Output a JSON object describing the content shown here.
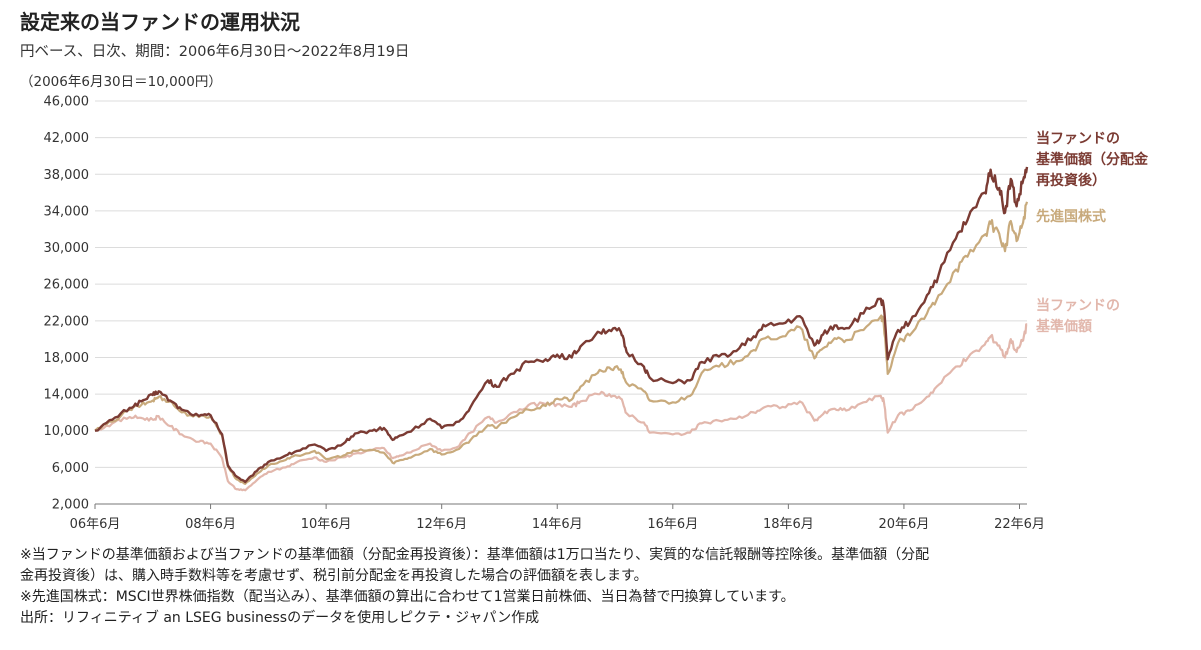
{
  "chart_data": {
    "type": "line",
    "title": "設定来の当ファンドの運用状況",
    "subtitle": "円ベース、日次、期間：2006年6月30日～2022年8月19日",
    "ylabel": "（2006年6月30日＝10,000円）",
    "xlabel": "",
    "ylim": [
      2000,
      46000
    ],
    "xlim": [
      2006.5,
      2022.63
    ],
    "yticks": [
      2000,
      6000,
      10000,
      14000,
      18000,
      22000,
      26000,
      30000,
      34000,
      38000,
      42000,
      46000
    ],
    "ytick_labels": [
      "2,000",
      "6,000",
      "10,000",
      "14,000",
      "18,000",
      "22,000",
      "26,000",
      "30,000",
      "34,000",
      "38,000",
      "42,000",
      "46,000"
    ],
    "xticks": [
      2006.5,
      2008.5,
      2010.5,
      2012.5,
      2014.5,
      2016.5,
      2018.5,
      2020.5,
      2022.5
    ],
    "xtick_labels": [
      "06年6月",
      "08年6月",
      "10年6月",
      "12年6月",
      "14年6月",
      "16年6月",
      "18年6月",
      "20年6月",
      "22年6月"
    ],
    "grid": true,
    "legend_position": "right",
    "series": [
      {
        "name": "当ファンドの基準価額（分配金再投資後）",
        "legend_lines": [
          "当ファンドの",
          "基準価額（分配金",
          "再投資後）"
        ],
        "color": "#7b3b33",
        "points": [
          [
            2006.5,
            10000
          ],
          [
            2006.8,
            11200
          ],
          [
            2007.1,
            12500
          ],
          [
            2007.3,
            13200
          ],
          [
            2007.5,
            13900
          ],
          [
            2007.6,
            14300
          ],
          [
            2007.8,
            13300
          ],
          [
            2008.0,
            12300
          ],
          [
            2008.3,
            11600
          ],
          [
            2008.5,
            11700
          ],
          [
            2008.7,
            9600
          ],
          [
            2008.8,
            6200
          ],
          [
            2008.95,
            5000
          ],
          [
            2009.1,
            4400
          ],
          [
            2009.3,
            5600
          ],
          [
            2009.5,
            6600
          ],
          [
            2009.8,
            7300
          ],
          [
            2010.0,
            7800
          ],
          [
            2010.3,
            8500
          ],
          [
            2010.5,
            7800
          ],
          [
            2010.8,
            8600
          ],
          [
            2011.0,
            9700
          ],
          [
            2011.3,
            10000
          ],
          [
            2011.5,
            10300
          ],
          [
            2011.65,
            9000
          ],
          [
            2011.8,
            9500
          ],
          [
            2012.0,
            10100
          ],
          [
            2012.3,
            11300
          ],
          [
            2012.5,
            10300
          ],
          [
            2012.8,
            11000
          ],
          [
            2013.0,
            12600
          ],
          [
            2013.3,
            15500
          ],
          [
            2013.45,
            14800
          ],
          [
            2013.7,
            16200
          ],
          [
            2014.0,
            17500
          ],
          [
            2014.3,
            17800
          ],
          [
            2014.5,
            18300
          ],
          [
            2014.75,
            18000
          ],
          [
            2014.9,
            19200
          ],
          [
            2015.2,
            20800
          ],
          [
            2015.4,
            21000
          ],
          [
            2015.6,
            20800
          ],
          [
            2015.7,
            18600
          ],
          [
            2016.0,
            17000
          ],
          [
            2016.1,
            15800
          ],
          [
            2016.5,
            15200
          ],
          [
            2016.8,
            15500
          ],
          [
            2017.0,
            17500
          ],
          [
            2017.3,
            18100
          ],
          [
            2017.6,
            18700
          ],
          [
            2017.9,
            20300
          ],
          [
            2018.1,
            21400
          ],
          [
            2018.4,
            21700
          ],
          [
            2018.7,
            22500
          ],
          [
            2018.95,
            19300
          ],
          [
            2019.1,
            20500
          ],
          [
            2019.3,
            21500
          ],
          [
            2019.5,
            21200
          ],
          [
            2019.8,
            22800
          ],
          [
            2020.1,
            24400
          ],
          [
            2020.15,
            23600
          ],
          [
            2020.22,
            17800
          ],
          [
            2020.4,
            21000
          ],
          [
            2020.6,
            21800
          ],
          [
            2020.9,
            24800
          ],
          [
            2021.1,
            27000
          ],
          [
            2021.4,
            31000
          ],
          [
            2021.6,
            33000
          ],
          [
            2021.9,
            36000
          ],
          [
            2022.0,
            38500
          ],
          [
            2022.15,
            36500
          ],
          [
            2022.25,
            33800
          ],
          [
            2022.35,
            37500
          ],
          [
            2022.45,
            34500
          ],
          [
            2022.55,
            37000
          ],
          [
            2022.63,
            38800
          ]
        ]
      },
      {
        "name": "先進国株式",
        "legend_lines": [
          "先進国株式"
        ],
        "color": "#c8aa7c",
        "points": [
          [
            2006.5,
            10000
          ],
          [
            2006.8,
            11000
          ],
          [
            2007.1,
            12300
          ],
          [
            2007.3,
            12800
          ],
          [
            2007.5,
            13300
          ],
          [
            2007.6,
            13700
          ],
          [
            2007.8,
            13200
          ],
          [
            2008.0,
            12000
          ],
          [
            2008.3,
            11500
          ],
          [
            2008.5,
            11600
          ],
          [
            2008.7,
            9500
          ],
          [
            2008.8,
            6100
          ],
          [
            2008.95,
            4700
          ],
          [
            2009.1,
            4200
          ],
          [
            2009.3,
            5300
          ],
          [
            2009.5,
            6200
          ],
          [
            2009.8,
            6800
          ],
          [
            2010.0,
            7300
          ],
          [
            2010.3,
            7800
          ],
          [
            2010.5,
            6900
          ],
          [
            2010.8,
            7300
          ],
          [
            2011.0,
            7800
          ],
          [
            2011.3,
            7900
          ],
          [
            2011.5,
            7600
          ],
          [
            2011.65,
            6500
          ],
          [
            2011.8,
            6800
          ],
          [
            2012.0,
            7200
          ],
          [
            2012.3,
            8000
          ],
          [
            2012.5,
            7400
          ],
          [
            2012.8,
            8000
          ],
          [
            2013.0,
            9000
          ],
          [
            2013.3,
            10600
          ],
          [
            2013.45,
            10300
          ],
          [
            2013.7,
            11400
          ],
          [
            2014.0,
            12300
          ],
          [
            2014.3,
            12700
          ],
          [
            2014.5,
            13500
          ],
          [
            2014.75,
            13400
          ],
          [
            2014.9,
            14800
          ],
          [
            2015.2,
            16300
          ],
          [
            2015.4,
            16900
          ],
          [
            2015.6,
            16700
          ],
          [
            2015.7,
            15200
          ],
          [
            2016.0,
            14300
          ],
          [
            2016.1,
            13300
          ],
          [
            2016.5,
            13100
          ],
          [
            2016.8,
            13800
          ],
          [
            2017.0,
            16300
          ],
          [
            2017.3,
            17000
          ],
          [
            2017.6,
            17600
          ],
          [
            2017.9,
            18800
          ],
          [
            2018.1,
            20100
          ],
          [
            2018.4,
            20300
          ],
          [
            2018.7,
            21300
          ],
          [
            2018.95,
            17900
          ],
          [
            2019.1,
            19000
          ],
          [
            2019.3,
            20100
          ],
          [
            2019.5,
            19900
          ],
          [
            2019.8,
            21000
          ],
          [
            2020.1,
            22500
          ],
          [
            2020.15,
            21700
          ],
          [
            2020.22,
            16200
          ],
          [
            2020.4,
            19600
          ],
          [
            2020.6,
            20400
          ],
          [
            2020.9,
            22800
          ],
          [
            2021.1,
            24800
          ],
          [
            2021.4,
            27600
          ],
          [
            2021.6,
            29000
          ],
          [
            2021.9,
            31400
          ],
          [
            2022.0,
            32600
          ],
          [
            2022.15,
            31500
          ],
          [
            2022.25,
            29600
          ],
          [
            2022.35,
            32900
          ],
          [
            2022.45,
            30700
          ],
          [
            2022.55,
            32500
          ],
          [
            2022.63,
            35000
          ]
        ]
      },
      {
        "name": "当ファンドの基準価額",
        "legend_lines": [
          "当ファンドの",
          "基準価額"
        ],
        "color": "#e2b7ac",
        "points": [
          [
            2006.5,
            10000
          ],
          [
            2006.8,
            10800
          ],
          [
            2007.1,
            11500
          ],
          [
            2007.3,
            11400
          ],
          [
            2007.5,
            11200
          ],
          [
            2007.6,
            11600
          ],
          [
            2007.8,
            10500
          ],
          [
            2008.0,
            9600
          ],
          [
            2008.3,
            8800
          ],
          [
            2008.5,
            8600
          ],
          [
            2008.7,
            7000
          ],
          [
            2008.8,
            4500
          ],
          [
            2008.95,
            3600
          ],
          [
            2009.1,
            3500
          ],
          [
            2009.3,
            4600
          ],
          [
            2009.5,
            5500
          ],
          [
            2009.8,
            6000
          ],
          [
            2010.0,
            6600
          ],
          [
            2010.3,
            7100
          ],
          [
            2010.5,
            6600
          ],
          [
            2010.8,
            7100
          ],
          [
            2011.0,
            7500
          ],
          [
            2011.3,
            7900
          ],
          [
            2011.5,
            8100
          ],
          [
            2011.65,
            7000
          ],
          [
            2011.8,
            7300
          ],
          [
            2012.0,
            7800
          ],
          [
            2012.3,
            8600
          ],
          [
            2012.5,
            7800
          ],
          [
            2012.8,
            8300
          ],
          [
            2013.0,
            9800
          ],
          [
            2013.3,
            11500
          ],
          [
            2013.45,
            10900
          ],
          [
            2013.7,
            11900
          ],
          [
            2014.0,
            12800
          ],
          [
            2014.3,
            12900
          ],
          [
            2014.5,
            12900
          ],
          [
            2014.75,
            12600
          ],
          [
            2014.9,
            13200
          ],
          [
            2015.2,
            14000
          ],
          [
            2015.4,
            14000
          ],
          [
            2015.6,
            13500
          ],
          [
            2015.7,
            11900
          ],
          [
            2016.0,
            10900
          ],
          [
            2016.1,
            9800
          ],
          [
            2016.5,
            9600
          ],
          [
            2016.8,
            9800
          ],
          [
            2017.0,
            10800
          ],
          [
            2017.3,
            11100
          ],
          [
            2017.6,
            11300
          ],
          [
            2017.9,
            12000
          ],
          [
            2018.1,
            12600
          ],
          [
            2018.4,
            12600
          ],
          [
            2018.7,
            13200
          ],
          [
            2018.95,
            11100
          ],
          [
            2019.1,
            11800
          ],
          [
            2019.3,
            12400
          ],
          [
            2019.5,
            12200
          ],
          [
            2019.8,
            13100
          ],
          [
            2020.1,
            13800
          ],
          [
            2020.15,
            13300
          ],
          [
            2020.22,
            9800
          ],
          [
            2020.4,
            11700
          ],
          [
            2020.6,
            12200
          ],
          [
            2020.9,
            13700
          ],
          [
            2021.1,
            15000
          ],
          [
            2021.4,
            17000
          ],
          [
            2021.6,
            17900
          ],
          [
            2021.9,
            19400
          ],
          [
            2022.0,
            20300
          ],
          [
            2022.15,
            19300
          ],
          [
            2022.25,
            18000
          ],
          [
            2022.35,
            20000
          ],
          [
            2022.45,
            18600
          ],
          [
            2022.55,
            19800
          ],
          [
            2022.63,
            21600
          ]
        ]
      }
    ]
  },
  "notes": [
    "※当ファンドの基準価額および当ファンドの基準価額（分配金再投資後）：基準価額は1万口当たり、実質的な信託報酬等控除後。基準価額（分配",
    "金再投資後）は、購入時手数料等を考慮せず、税引前分配金を再投資した場合の評価額を表します。",
    "※先進国株式：MSCI世界株価指数（配当込み）、基準価額の算出に合わせて1営業日前株価、当日為替で円換算しています。",
    "出所：リフィニティブ an LSEG businessのデータを使用しピクテ・ジャパン作成"
  ]
}
